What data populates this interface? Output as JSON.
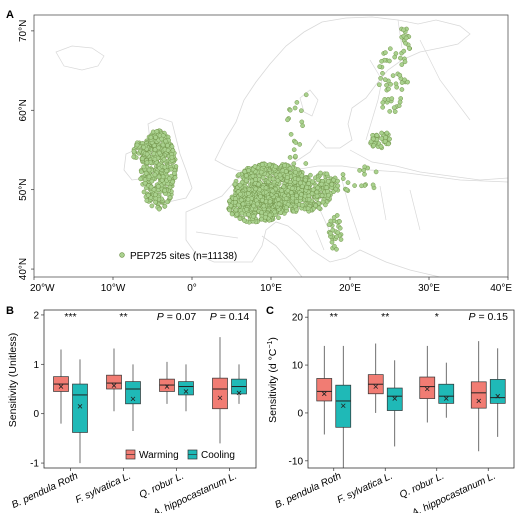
{
  "colors": {
    "warming": "#F17C73",
    "cooling": "#1FB9B7",
    "site": "#A9D18E",
    "site_stroke": "#6D8F45",
    "land": "#FFFFFF",
    "border": "#D9D9D9",
    "frame": "#555555"
  },
  "panel_a": {
    "letter": "A",
    "legend_label": "PEP725 sites (n=11138)",
    "x_ticks": [
      "20°W",
      "10°W",
      "0°",
      "10°E",
      "20°E",
      "30°E",
      "40°E"
    ],
    "y_ticks": [
      "40°N",
      "50°N",
      "60°N",
      "70°N"
    ],
    "x_range_deg": [
      -20,
      40
    ],
    "y_range_deg": [
      39,
      72
    ]
  },
  "legend": {
    "warming": "Warming",
    "cooling": "Cooling"
  },
  "chart_data": [
    {
      "type": "boxplot",
      "letter": "B",
      "title": "",
      "ylabel": "Sensitivity (Unitless)",
      "ylim": [
        -1.1,
        2.1
      ],
      "yticks": [
        -1,
        0,
        1,
        2
      ],
      "categories": [
        "B. pendula Roth",
        "F. sylvatica L.",
        "Q. robur L.",
        "A. hippocastanum L."
      ],
      "significance": [
        {
          "plain": "***",
          "italic_p": ""
        },
        {
          "plain": "**",
          "italic_p": ""
        },
        {
          "plain": " = 0.07",
          "italic_p": "P"
        },
        {
          "plain": " = 0.14",
          "italic_p": "P"
        }
      ],
      "series": [
        {
          "name": "Warming",
          "boxes": [
            {
              "whisker_low": -0.2,
              "q1": 0.45,
              "median": 0.6,
              "q3": 0.75,
              "whisker_high": 1.3,
              "mean": 0.55
            },
            {
              "whisker_low": 0.05,
              "q1": 0.5,
              "median": 0.62,
              "q3": 0.78,
              "whisker_high": 1.32,
              "mean": 0.57
            },
            {
              "whisker_low": 0.2,
              "q1": 0.45,
              "median": 0.58,
              "q3": 0.7,
              "whisker_high": 1.05,
              "mean": 0.55
            },
            {
              "whisker_low": -0.6,
              "q1": 0.1,
              "median": 0.5,
              "q3": 0.72,
              "whisker_high": 1.55,
              "mean": 0.32
            }
          ]
        },
        {
          "name": "Cooling",
          "boxes": [
            {
              "whisker_low": -1.0,
              "q1": -0.38,
              "median": 0.38,
              "q3": 0.6,
              "whisker_high": 1.1,
              "mean": 0.15
            },
            {
              "whisker_low": -0.35,
              "q1": 0.2,
              "median": 0.5,
              "q3": 0.65,
              "whisker_high": 1.0,
              "mean": 0.3
            },
            {
              "whisker_low": 0.05,
              "q1": 0.38,
              "median": 0.55,
              "q3": 0.65,
              "whisker_high": 1.0,
              "mean": 0.45
            },
            {
              "whisker_low": 0.2,
              "q1": 0.4,
              "median": 0.55,
              "q3": 0.7,
              "whisker_high": 1.0,
              "mean": 0.42
            }
          ]
        }
      ]
    },
    {
      "type": "boxplot",
      "letter": "C",
      "title": "",
      "ylabel_main": "Sensitivity (d °C",
      "ylabel_sup": "−1",
      "ylabel_close": ")",
      "ylim": [
        -11.5,
        21.5
      ],
      "yticks": [
        -10,
        0,
        10,
        20
      ],
      "categories": [
        "B. pendula Roth",
        "F. sylvatica L.",
        "Q. robur L.",
        "A. hippocastanum L."
      ],
      "significance": [
        {
          "plain": "**",
          "italic_p": ""
        },
        {
          "plain": "**",
          "italic_p": ""
        },
        {
          "plain": "*",
          "italic_p": ""
        },
        {
          "plain": " = 0.15",
          "italic_p": "P"
        }
      ],
      "series": [
        {
          "name": "Warming",
          "boxes": [
            {
              "whisker_low": -4.5,
              "q1": 2.5,
              "median": 4.5,
              "q3": 7.2,
              "whisker_high": 14,
              "mean": 4.0
            },
            {
              "whisker_low": 0,
              "q1": 4,
              "median": 6,
              "q3": 8,
              "whisker_high": 14.5,
              "mean": 5.5
            },
            {
              "whisker_low": -2,
              "q1": 3,
              "median": 5.5,
              "q3": 7.5,
              "whisker_high": 14,
              "mean": 5.0
            },
            {
              "whisker_low": -8,
              "q1": 1,
              "median": 4.2,
              "q3": 6.5,
              "whisker_high": 15,
              "mean": 2.5
            }
          ]
        },
        {
          "name": "Cooling",
          "boxes": [
            {
              "whisker_low": -11.5,
              "q1": -3,
              "median": 2.5,
              "q3": 5.8,
              "whisker_high": 14,
              "mean": 1.5
            },
            {
              "whisker_low": -7,
              "q1": 0.5,
              "median": 3.5,
              "q3": 5.2,
              "whisker_high": 11,
              "mean": 3.0
            },
            {
              "whisker_low": -1,
              "q1": 2,
              "median": 3.5,
              "q3": 6,
              "whisker_high": 10.5,
              "mean": 3.0
            },
            {
              "whisker_low": -5,
              "q1": 2,
              "median": 3.2,
              "q3": 7,
              "whisker_high": 13.5,
              "mean": 3.5
            }
          ]
        }
      ]
    }
  ]
}
